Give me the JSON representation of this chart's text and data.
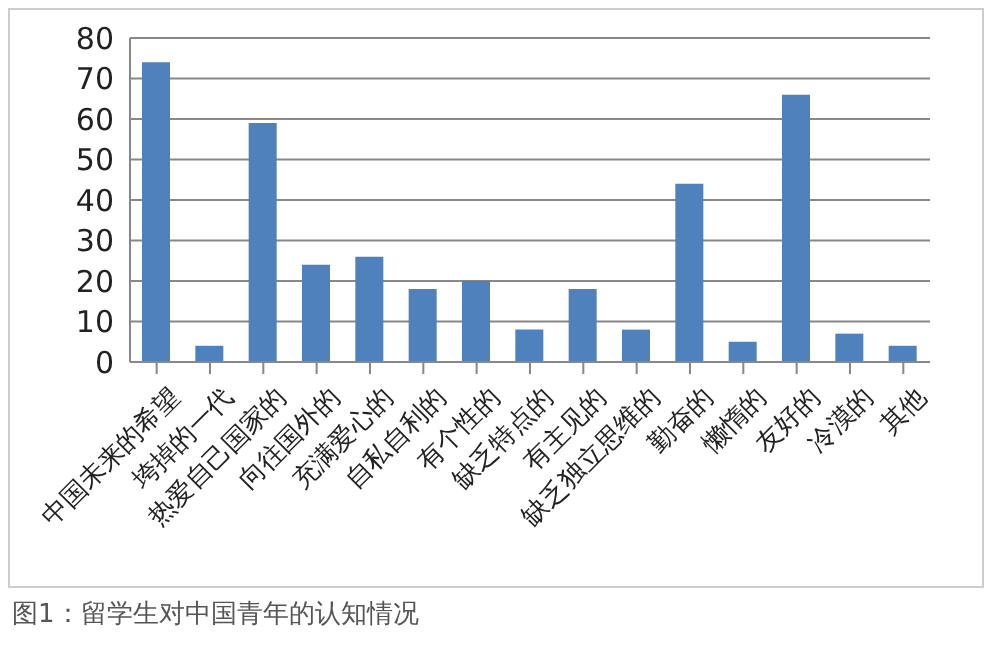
{
  "chart_data": {
    "type": "bar",
    "categories": [
      "中国未来的希望",
      "垮掉的一代",
      "热爱自己国家的",
      "向往国外的",
      "充满爱心的",
      "自私自利的",
      "有个性的",
      "缺乏特点的",
      "有主见的",
      "缺乏独立思维的",
      "勤奋的",
      "懒惰的",
      "友好的",
      "冷漠的",
      "其他"
    ],
    "values": [
      74,
      4,
      59,
      24,
      26,
      18,
      20,
      8,
      18,
      8,
      44,
      5,
      66,
      7,
      4
    ],
    "color": "#4f81bd",
    "ylim": [
      0,
      80
    ],
    "yticks": [
      0,
      10,
      20,
      30,
      40,
      50,
      60,
      70,
      80
    ],
    "grid": "y",
    "legend": false,
    "annotations": [
      "图1：留学生对中国青年的认知情况"
    ]
  }
}
